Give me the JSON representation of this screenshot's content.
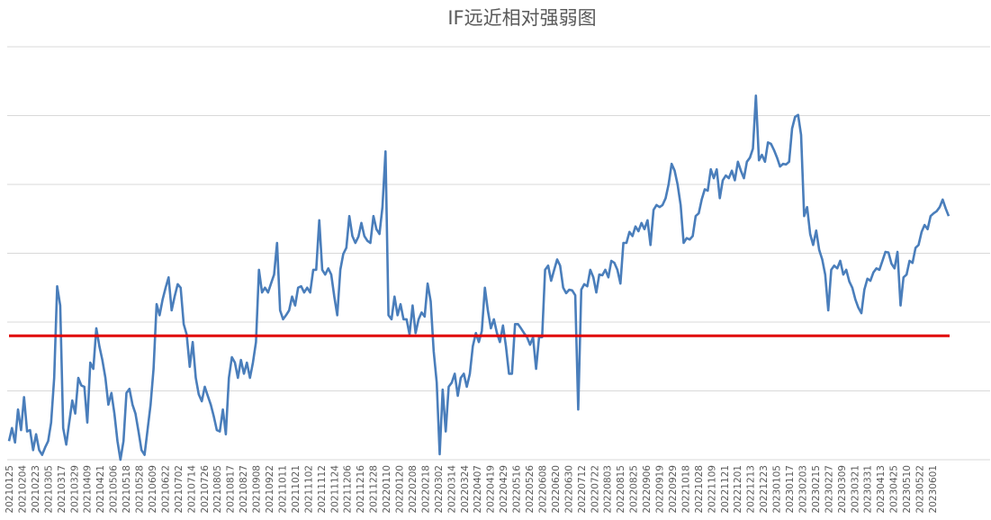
{
  "chart_data": {
    "type": "line",
    "title": "IF远近相对强弱图",
    "xlabel": "",
    "ylabel": "",
    "y_tick_labels_shown": false,
    "ylim": [
      0,
      60
    ],
    "y_grid_step": 10,
    "grid": true,
    "legend": "none",
    "x_tick_labels": [
      "20210125",
      "20210204",
      "20210223",
      "20210305",
      "20210317",
      "20210329",
      "20210409",
      "20210421",
      "20210506",
      "20210518",
      "20210528",
      "20210609",
      "20210622",
      "20210702",
      "20210714",
      "20210726",
      "20210805",
      "20210817",
      "20210827",
      "20210908",
      "20210922",
      "20211011",
      "20211021",
      "20211102",
      "20211112",
      "20211124",
      "20211206",
      "20211216",
      "20211228",
      "20220110",
      "20220120",
      "20220208",
      "20220218",
      "20220302",
      "20220314",
      "20220324",
      "20220407",
      "20220419",
      "20220429",
      "20220516",
      "20220526",
      "20220608",
      "20220620",
      "20220630",
      "20220712",
      "20220722",
      "20220803",
      "20220815",
      "20220825",
      "20220906",
      "20220919",
      "20220929",
      "20221018",
      "20221028",
      "20221109",
      "20221121",
      "20221201",
      "20221213",
      "20221223",
      "20230105",
      "20230117",
      "20230203",
      "20230215",
      "20230227",
      "20230309",
      "20230321",
      "20230331",
      "20230413",
      "20230425",
      "20230510",
      "20230522",
      "20230601"
    ],
    "series": [
      {
        "color": "#4a7ebb",
        "values": [
          2.7,
          4.6,
          2.5,
          7.3,
          4.3,
          9.1,
          4.1,
          4.3,
          1.4,
          3.7,
          1.4,
          0.7,
          1.8,
          2.7,
          5.4,
          11.9,
          25.2,
          22.4,
          4.6,
          2.2,
          5.4,
          8.6,
          6.7,
          11.9,
          10.8,
          10.6,
          5.4,
          14.1,
          13.2,
          19.1,
          16.5,
          14.5,
          11.9,
          8.0,
          9.7,
          6.7,
          2.7,
          0,
          2.7,
          9.7,
          10.3,
          8.0,
          6.7,
          4.1,
          1.4,
          0.7,
          4.3,
          8.0,
          13.2,
          22.6,
          21.0,
          23.3,
          25.0,
          26.5,
          21.7,
          23.7,
          25.5,
          25.0,
          19.7,
          18.2,
          13.5,
          17.1,
          11.9,
          9.5,
          8.5,
          10.6,
          9.3,
          8.0,
          6.3,
          4.3,
          4.1,
          7.3,
          3.7,
          11.9,
          14.9,
          14.1,
          11.9,
          14.5,
          12.5,
          14.1,
          11.9,
          14.1,
          17.1,
          27.6,
          24.3,
          25.0,
          24.3,
          25.6,
          26.9,
          31.5,
          21.7,
          20.4,
          21.0,
          21.7,
          23.7,
          22.4,
          25.0,
          25.2,
          24.3,
          25.0,
          24.3,
          27.6,
          27.6,
          34.8,
          27.6,
          26.9,
          27.8,
          26.9,
          23.7,
          21.0,
          27.6,
          29.9,
          30.8,
          35.4,
          32.5,
          31.5,
          32.4,
          34.4,
          32.5,
          31.8,
          31.5,
          35.4,
          33.5,
          32.8,
          36.7,
          44.8,
          21.0,
          20.4,
          23.7,
          21.0,
          22.6,
          20.4,
          20.4,
          18.2,
          22.4,
          18.4,
          20.4,
          21.4,
          20.8,
          25.6,
          23.0,
          15.8,
          11.2,
          0.8,
          10.2,
          4.1,
          10.6,
          11.2,
          12.5,
          9.3,
          11.9,
          12.5,
          10.6,
          12.5,
          16.5,
          18.4,
          17.1,
          18.7,
          25.0,
          21.7,
          19.1,
          20.4,
          18.4,
          17.1,
          19.5,
          16.5,
          12.5,
          12.5,
          19.7,
          19.7,
          19.1,
          18.4,
          17.8,
          16.7,
          17.8,
          13.2,
          17.8,
          17.8,
          27.6,
          28.2,
          26.0,
          27.6,
          29.1,
          28.2,
          25.0,
          24.2,
          24.7,
          24.6,
          23.9,
          7.3,
          24.7,
          25.5,
          25.2,
          27.6,
          26.5,
          24.3,
          26.9,
          26.8,
          27.6,
          26.5,
          28.9,
          28.6,
          27.6,
          25.6,
          31.5,
          31.5,
          33.1,
          32.5,
          33.9,
          33.2,
          34.4,
          33.5,
          34.8,
          31.2,
          36.3,
          37.0,
          36.7,
          37.0,
          38.0,
          40.0,
          43.0,
          42.0,
          40.0,
          37.0,
          31.5,
          32.2,
          32.0,
          32.5,
          35.4,
          35.8,
          37.8,
          39.3,
          39.1,
          42.2,
          40.9,
          42.2,
          38.0,
          40.6,
          41.3,
          40.9,
          42.0,
          40.6,
          43.3,
          42.0,
          40.9,
          43.3,
          43.9,
          45.2,
          52.9,
          43.5,
          44.3,
          43.3,
          46.1,
          45.9,
          45.0,
          43.9,
          42.6,
          43.0,
          42.9,
          43.3,
          48.1,
          49.8,
          50.1,
          47.2,
          35.4,
          36.7,
          32.8,
          31.2,
          33.3,
          30.5,
          29.1,
          26.9,
          21.7,
          27.6,
          28.2,
          27.8,
          28.9,
          26.9,
          27.6,
          25.9,
          25.0,
          23.3,
          22.1,
          21.3,
          24.7,
          26.3,
          26.0,
          27.2,
          27.8,
          27.6,
          28.9,
          30.2,
          30.1,
          28.5,
          27.8,
          30.2,
          22.4,
          26.5,
          26.9,
          28.9,
          28.6,
          30.8,
          31.2,
          33.1,
          34.1,
          33.5,
          35.4,
          35.8,
          36.1,
          36.7,
          37.8,
          36.5,
          35.4
        ]
      }
    ],
    "reference_line": {
      "value": 18.0,
      "color": "#e00000"
    }
  }
}
